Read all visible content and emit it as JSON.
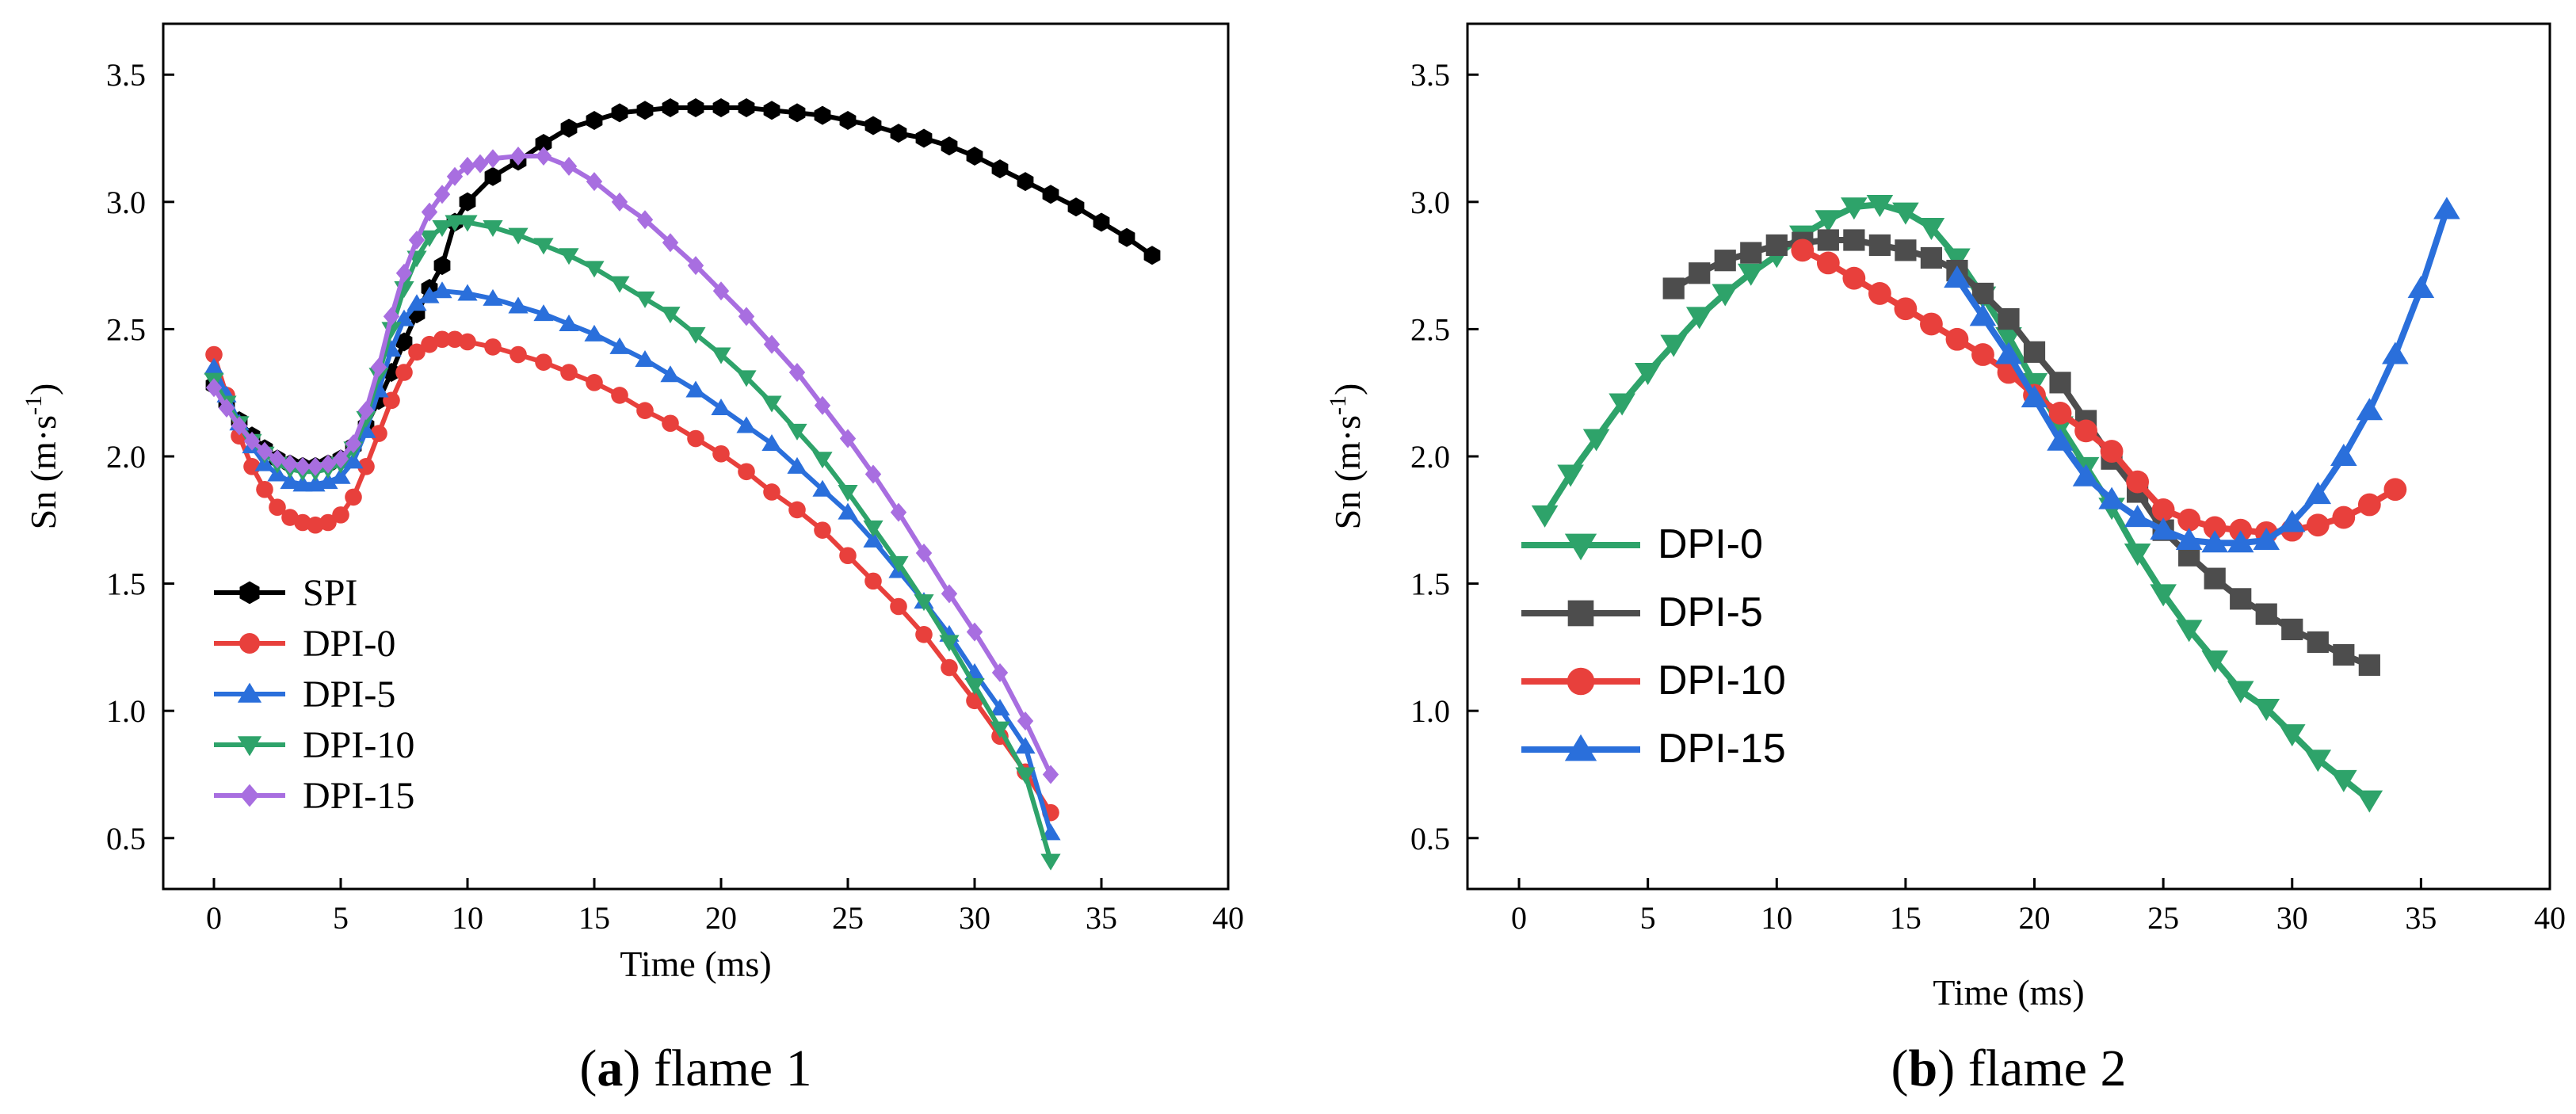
{
  "chart_data": [
    {
      "type": "line",
      "panel": "a",
      "caption_letter": "a",
      "caption_text": " flame 1",
      "xlabel": "Time (ms)",
      "ylabel": "Sn (m·s⁻¹)",
      "xlim": [
        -2,
        40
      ],
      "ylim": [
        0.3,
        3.7
      ],
      "xticks": [
        0,
        5,
        10,
        15,
        20,
        25,
        30,
        35,
        40
      ],
      "xtick_labels": [
        "0",
        "5",
        "10",
        "15",
        "20",
        "25",
        "30",
        "35",
        "40"
      ],
      "yticks": [
        0.5,
        1.0,
        1.5,
        2.0,
        2.5,
        3.0,
        3.5
      ],
      "ytick_labels": [
        "0.5",
        "1.0",
        "1.5",
        "2.0",
        "2.5",
        "3.0",
        "3.5"
      ],
      "legend_position": "lower-left",
      "series": [
        {
          "name": "SPI",
          "color": "#000000",
          "marker": "hexagon",
          "x": [
            0,
            0.5,
            1,
            1.5,
            2,
            2.5,
            3,
            3.5,
            4,
            4.5,
            5,
            5.5,
            6,
            6.5,
            7,
            7.5,
            8,
            8.5,
            9,
            9.5,
            10,
            11,
            12,
            13,
            14,
            15,
            16,
            17,
            18,
            19,
            20,
            21,
            22,
            23,
            24,
            25,
            26,
            27,
            28,
            29,
            30,
            31,
            32,
            33,
            34,
            35,
            36,
            37
          ],
          "y": [
            2.28,
            2.21,
            2.14,
            2.08,
            2.03,
            1.99,
            1.97,
            1.96,
            1.96,
            1.97,
            1.99,
            2.04,
            2.12,
            2.22,
            2.33,
            2.45,
            2.56,
            2.66,
            2.75,
            2.92,
            3.0,
            3.1,
            3.16,
            3.23,
            3.29,
            3.32,
            3.35,
            3.36,
            3.37,
            3.37,
            3.37,
            3.37,
            3.36,
            3.35,
            3.34,
            3.32,
            3.3,
            3.27,
            3.25,
            3.22,
            3.18,
            3.13,
            3.08,
            3.03,
            2.98,
            2.92,
            2.86,
            2.79
          ]
        },
        {
          "name": "DPI-0",
          "color": "#e8403c",
          "marker": "circle",
          "x": [
            0,
            0.5,
            1,
            1.5,
            2,
            2.5,
            3,
            3.5,
            4,
            4.5,
            5,
            5.5,
            6,
            6.5,
            7,
            7.5,
            8,
            8.5,
            9,
            9.5,
            10,
            11,
            12,
            13,
            14,
            15,
            16,
            17,
            18,
            19,
            20,
            21,
            22,
            23,
            24,
            25,
            26,
            27,
            28,
            29,
            30,
            31,
            32,
            33
          ],
          "y": [
            2.4,
            2.24,
            2.08,
            1.96,
            1.87,
            1.8,
            1.76,
            1.74,
            1.73,
            1.74,
            1.77,
            1.84,
            1.96,
            2.09,
            2.22,
            2.33,
            2.41,
            2.44,
            2.46,
            2.46,
            2.45,
            2.43,
            2.4,
            2.37,
            2.33,
            2.29,
            2.24,
            2.18,
            2.13,
            2.07,
            2.01,
            1.94,
            1.86,
            1.79,
            1.71,
            1.61,
            1.51,
            1.41,
            1.3,
            1.17,
            1.04,
            0.9,
            0.76,
            0.6
          ]
        },
        {
          "name": "DPI-5",
          "color": "#2a6fdb",
          "marker": "triangle-up",
          "x": [
            0,
            0.5,
            1,
            1.5,
            2,
            2.5,
            3,
            3.5,
            4,
            4.5,
            5,
            5.5,
            6,
            6.5,
            7,
            7.5,
            8,
            8.5,
            9,
            10,
            11,
            12,
            13,
            14,
            15,
            16,
            17,
            18,
            19,
            20,
            21,
            22,
            23,
            24,
            25,
            26,
            27,
            28,
            29,
            30,
            31,
            32,
            33
          ],
          "y": [
            2.35,
            2.24,
            2.13,
            2.04,
            1.97,
            1.93,
            1.9,
            1.89,
            1.89,
            1.9,
            1.92,
            1.98,
            2.1,
            2.26,
            2.42,
            2.54,
            2.6,
            2.63,
            2.65,
            2.64,
            2.62,
            2.59,
            2.56,
            2.52,
            2.48,
            2.43,
            2.38,
            2.32,
            2.26,
            2.19,
            2.12,
            2.05,
            1.96,
            1.87,
            1.78,
            1.67,
            1.55,
            1.43,
            1.3,
            1.15,
            1.01,
            0.86,
            0.52
          ]
        },
        {
          "name": "DPI-10",
          "color": "#2ea36a",
          "marker": "triangle-down",
          "x": [
            0,
            0.5,
            1,
            1.5,
            2,
            2.5,
            3,
            3.5,
            4,
            4.5,
            5,
            5.5,
            6,
            6.5,
            7,
            7.5,
            8,
            8.5,
            9,
            9.5,
            10,
            11,
            12,
            13,
            14,
            15,
            16,
            17,
            18,
            19,
            20,
            21,
            22,
            23,
            24,
            25,
            26,
            27,
            28,
            29,
            30,
            31,
            32,
            33
          ],
          "y": [
            2.3,
            2.21,
            2.13,
            2.06,
            2.01,
            1.97,
            1.95,
            1.94,
            1.94,
            1.95,
            1.97,
            2.03,
            2.15,
            2.32,
            2.5,
            2.66,
            2.78,
            2.86,
            2.9,
            2.92,
            2.92,
            2.9,
            2.87,
            2.83,
            2.79,
            2.74,
            2.68,
            2.62,
            2.56,
            2.48,
            2.4,
            2.31,
            2.21,
            2.1,
            1.99,
            1.86,
            1.72,
            1.58,
            1.43,
            1.27,
            1.1,
            0.93,
            0.75,
            0.41
          ]
        },
        {
          "name": "DPI-15",
          "color": "#a86ee0",
          "marker": "diamond",
          "x": [
            0,
            0.5,
            1,
            1.5,
            2,
            2.5,
            3,
            3.5,
            4,
            4.5,
            5,
            5.5,
            6,
            6.5,
            7,
            7.5,
            8,
            8.5,
            9,
            9.5,
            10,
            10.5,
            11,
            12,
            13,
            14,
            15,
            16,
            17,
            18,
            19,
            20,
            21,
            22,
            23,
            24,
            25,
            26,
            27,
            28,
            29,
            30,
            31,
            32,
            33
          ],
          "y": [
            2.27,
            2.19,
            2.12,
            2.06,
            2.02,
            1.99,
            1.97,
            1.96,
            1.96,
            1.97,
            1.99,
            2.05,
            2.18,
            2.35,
            2.55,
            2.72,
            2.85,
            2.96,
            3.03,
            3.1,
            3.14,
            3.15,
            3.17,
            3.18,
            3.18,
            3.14,
            3.08,
            3.0,
            2.93,
            2.84,
            2.75,
            2.65,
            2.55,
            2.44,
            2.33,
            2.2,
            2.07,
            1.93,
            1.78,
            1.62,
            1.46,
            1.31,
            1.15,
            0.96,
            0.75
          ]
        }
      ]
    },
    {
      "type": "line",
      "panel": "b",
      "caption_letter": "b",
      "caption_text": " flame 2",
      "xlabel": "Time (ms)",
      "ylabel": "Sn (m·s⁻¹)",
      "xlim": [
        -2,
        40
      ],
      "ylim": [
        0.3,
        3.7
      ],
      "xticks": [
        0,
        5,
        10,
        15,
        20,
        25,
        30,
        35,
        40
      ],
      "xtick_labels": [
        "0",
        "5",
        "10",
        "15",
        "20",
        "25",
        "30",
        "35",
        "40"
      ],
      "yticks": [
        0.5,
        1.0,
        1.5,
        2.0,
        2.5,
        3.0,
        3.5
      ],
      "ytick_labels": [
        "0.5",
        "1.0",
        "1.5",
        "2.0",
        "2.5",
        "3.0",
        "3.5"
      ],
      "legend_position": "lower-left",
      "series": [
        {
          "name": "DPI-0",
          "color": "#2ea36a",
          "marker": "triangle-down",
          "x": [
            1,
            2,
            3,
            4,
            5,
            6,
            7,
            8,
            9,
            10,
            11,
            12,
            13,
            14,
            15,
            16,
            17,
            18,
            19,
            20,
            21,
            22,
            23,
            24,
            25,
            26,
            27,
            28,
            29,
            30,
            31,
            32,
            33
          ],
          "y": [
            1.77,
            1.93,
            2.07,
            2.21,
            2.33,
            2.44,
            2.55,
            2.64,
            2.72,
            2.79,
            2.87,
            2.93,
            2.98,
            2.99,
            2.96,
            2.9,
            2.78,
            2.63,
            2.47,
            2.29,
            2.12,
            1.96,
            1.8,
            1.62,
            1.46,
            1.32,
            1.2,
            1.08,
            1.01,
            0.91,
            0.81,
            0.73,
            0.65
          ]
        },
        {
          "name": "DPI-5",
          "color": "#4d4d4d",
          "marker": "square",
          "x": [
            6,
            7,
            8,
            9,
            10,
            11,
            12,
            13,
            14,
            15,
            16,
            17,
            18,
            19,
            20,
            21,
            22,
            23,
            24,
            25,
            26,
            27,
            28,
            29,
            30,
            31,
            32,
            33
          ],
          "y": [
            2.66,
            2.72,
            2.77,
            2.8,
            2.83,
            2.84,
            2.85,
            2.85,
            2.83,
            2.81,
            2.78,
            2.73,
            2.64,
            2.54,
            2.41,
            2.29,
            2.14,
            1.99,
            1.86,
            1.71,
            1.61,
            1.52,
            1.44,
            1.38,
            1.32,
            1.27,
            1.22,
            1.18
          ]
        },
        {
          "name": "DPI-10",
          "color": "#e8403c",
          "marker": "circle",
          "x": [
            11,
            12,
            13,
            14,
            15,
            16,
            17,
            18,
            19,
            20,
            21,
            22,
            23,
            24,
            25,
            26,
            27,
            28,
            29,
            30,
            31,
            32,
            33,
            34
          ],
          "y": [
            2.81,
            2.76,
            2.7,
            2.64,
            2.58,
            2.52,
            2.46,
            2.4,
            2.33,
            2.24,
            2.17,
            2.1,
            2.02,
            1.9,
            1.79,
            1.75,
            1.72,
            1.71,
            1.7,
            1.71,
            1.73,
            1.76,
            1.81,
            1.87
          ]
        },
        {
          "name": "DPI-15",
          "color": "#2a6fdb",
          "marker": "triangle-up",
          "x": [
            17,
            18,
            19,
            20,
            21,
            22,
            23,
            24,
            25,
            26,
            27,
            28,
            29,
            30,
            31,
            32,
            33,
            34,
            35,
            36
          ],
          "y": [
            2.7,
            2.55,
            2.4,
            2.23,
            2.06,
            1.92,
            1.83,
            1.76,
            1.71,
            1.67,
            1.66,
            1.66,
            1.67,
            1.74,
            1.85,
            2.0,
            2.18,
            2.4,
            2.66,
            2.97
          ]
        }
      ]
    }
  ]
}
